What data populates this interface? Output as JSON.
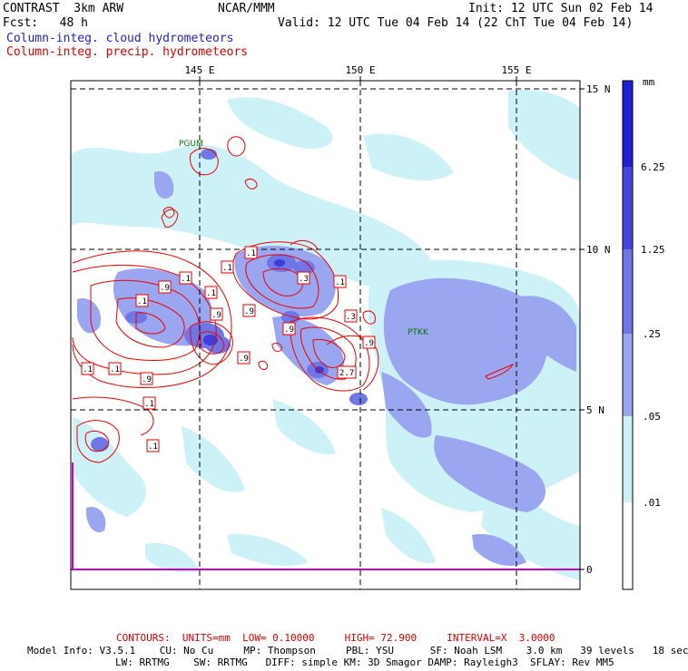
{
  "header": {
    "model": "CONTRAST  3km ARW",
    "center": "NCAR/MMM",
    "init": "Init: 12 UTC Sun 02 Feb 14",
    "forecast": "Fcst:   48 h",
    "valid": "Valid: 12 UTC Tue 04 Feb 14 (22 ChT Tue 04 Feb 14)",
    "field_cloud": "Column-integ. cloud hydrometeors",
    "field_precip": "Column-integ. precip. hydrometeors"
  },
  "colors": {
    "cloud_label": "#2222cc",
    "precip_label": "#dd0000",
    "contour": "#ee0000",
    "station": "#007700",
    "scale_0": "#ffffff",
    "scale_1": "#ccf2f8",
    "scale_2": "#9aa6f0",
    "scale_3": "#6f77e6",
    "scale_4": "#4545e0",
    "scale_5": "#1f1fd8"
  },
  "map": {
    "lon_labels": [
      "145 E",
      "150 E",
      "155 E"
    ],
    "lat_labels": [
      "15 N",
      "10 N",
      "5 N",
      "0"
    ],
    "stations": [
      "PGUM",
      "PTKK"
    ],
    "contour_labels": [
      ".1",
      ".1",
      ".9",
      ".1",
      ".9",
      ".1",
      ".9",
      ".1",
      ".3",
      ".9",
      ".1",
      ".1",
      ".9",
      ".1",
      ".1",
      ".9",
      ".3",
      ".9",
      "2.7",
      ".1"
    ]
  },
  "colorbar": {
    "unit": "mm",
    "levels": [
      "6.25",
      "1.25",
      ".25",
      ".05",
      ".01"
    ]
  },
  "footer": {
    "contours": "CONTOURS:  UNITS=mm  LOW= 0.10000     HIGH= 72.900     INTERVAL=X  3.0000",
    "model_line1": "Model Info: V3.5.1    CU: No Cu     MP: Thompson     PBL: YSU      SF: Noah LSM    3.0 km   39 levels   18 sec",
    "model_line2": "LW: RRTMG    SW: RRTMG   DIFF: simple KM: 3D Smagor DAMP: Rayleigh3  SFLAY: Rev MM5"
  }
}
